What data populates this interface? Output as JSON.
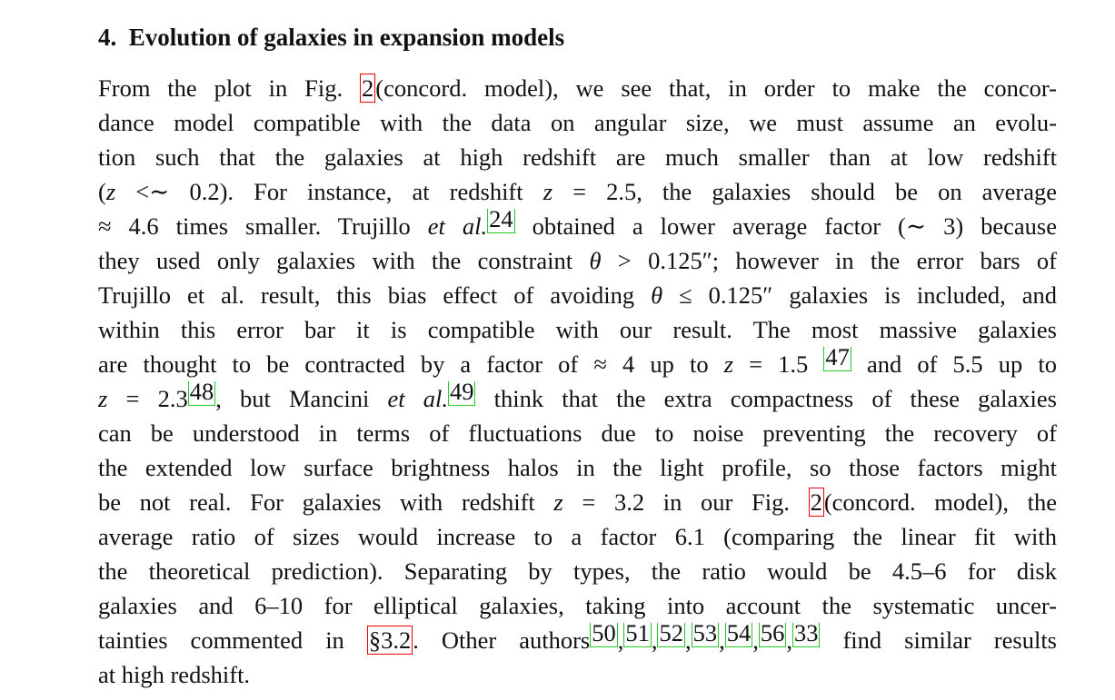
{
  "heading": "4.  Evolution of galaxies in expansion models",
  "paragraph": {
    "lines": [
      [
        {
          "text": "From the plot in Fig. "
        },
        {
          "fig_ref": "2"
        },
        {
          "text": "(concord. model), we see that, in order to make the concor-"
        }
      ],
      [
        {
          "text": "dance model compatible with the data on angular size, we must assume an evolu-"
        }
      ],
      [
        {
          "text": "tion such that the galaxies at high redshift are much smaller than at low redshift"
        }
      ],
      [
        {
          "text": "("
        },
        {
          "italic": "z"
        },
        {
          "text": " <∼ 0.2). For instance, at redshift "
        },
        {
          "italic": "z"
        },
        {
          "text": " = 2.5, the galaxies should be on average"
        }
      ],
      [
        {
          "text": "≈ 4.6 times smaller. Trujillo "
        },
        {
          "italic": "et al."
        },
        {
          "cite": "24"
        },
        {
          "text": " obtained a lower average factor (∼ 3) because"
        }
      ],
      [
        {
          "text": "they used only galaxies with the constraint "
        },
        {
          "italic": "θ"
        },
        {
          "text": " > 0.125″; however in the error bars of"
        }
      ],
      [
        {
          "text": "Trujillo et al. result, this bias effect of avoiding "
        },
        {
          "italic": "θ"
        },
        {
          "text": " ≤ 0.125″ galaxies is included, and"
        }
      ],
      [
        {
          "text": "within this error bar it is compatible with our result. The most massive galaxies"
        }
      ],
      [
        {
          "text": "are thought to be contracted by a factor of ≈ 4 up to "
        },
        {
          "italic": "z"
        },
        {
          "text": " = 1.5 "
        },
        {
          "cite": "47"
        },
        {
          "text": " and of 5.5 up to"
        }
      ],
      [
        {
          "italic": "z"
        },
        {
          "text": " = 2.3"
        },
        {
          "cite": "48"
        },
        {
          "text": ", but Mancini "
        },
        {
          "italic": "et al."
        },
        {
          "cite": "49"
        },
        {
          "text": " think that the extra compactness of these galaxies"
        }
      ],
      [
        {
          "text": "can be understood in terms of fluctuations due to noise preventing the recovery of"
        }
      ],
      [
        {
          "text": "the extended low surface brightness halos in the light profile, so those factors might"
        }
      ],
      [
        {
          "text": "be not real. For galaxies with redshift "
        },
        {
          "italic": "z"
        },
        {
          "text": " = 3.2 in our Fig. "
        },
        {
          "fig_ref": "2"
        },
        {
          "text": "(concord. model), the"
        }
      ],
      [
        {
          "text": "average ratio of sizes would increase to a factor 6.1 (comparing the linear fit with"
        }
      ],
      [
        {
          "text": "the theoretical prediction). Separating by types, the ratio would be 4.5–6 for disk"
        }
      ],
      [
        {
          "text": "galaxies and 6–10 for elliptical galaxies, taking into account the systematic uncer-"
        }
      ],
      [
        {
          "text": "tainties commented in "
        },
        {
          "sec_ref": "§3.2"
        },
        {
          "text": ". Other authors"
        },
        {
          "cite": "50"
        },
        {
          "text": ","
        },
        {
          "cite": "51"
        },
        {
          "text": ","
        },
        {
          "cite": "52"
        },
        {
          "text": ","
        },
        {
          "cite": "53"
        },
        {
          "text": ","
        },
        {
          "cite": "54"
        },
        {
          "text": ","
        },
        {
          "cite": "56"
        },
        {
          "text": ","
        },
        {
          "cite": "33"
        },
        {
          "text": " find similar results"
        }
      ],
      [
        {
          "text": "at high redshift."
        }
      ]
    ]
  }
}
